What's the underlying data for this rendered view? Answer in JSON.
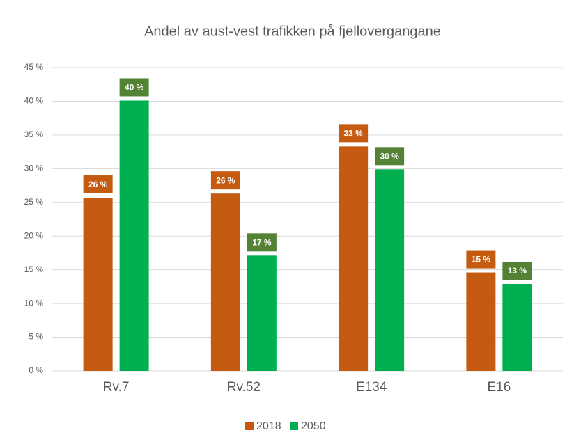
{
  "chart_data": {
    "type": "bar",
    "title": "Andel av aust-vest trafikken på fjellovergangane",
    "categories": [
      "Rv.7",
      "Rv.52",
      "E134",
      "E16"
    ],
    "series": [
      {
        "name": "2018",
        "color": "#c55a11",
        "label_color": "#c55a11",
        "values": [
          25.7,
          26.3,
          33.3,
          14.6
        ],
        "value_labels": [
          "26 %",
          "26 %",
          "33 %",
          "15 %"
        ]
      },
      {
        "name": "2050",
        "color": "#00b050",
        "label_color": "#548235",
        "values": [
          40.1,
          17.1,
          29.9,
          12.9
        ],
        "value_labels": [
          "40 %",
          "17 %",
          "30 %",
          "13 %"
        ]
      }
    ],
    "ylim": [
      0,
      45
    ],
    "yticks": [
      {
        "value": 0,
        "label": "0 %"
      },
      {
        "value": 5,
        "label": "5 %"
      },
      {
        "value": 10,
        "label": "10 %"
      },
      {
        "value": 15,
        "label": "15 %"
      },
      {
        "value": 20,
        "label": "20 %"
      },
      {
        "value": 25,
        "label": "25 %"
      },
      {
        "value": 30,
        "label": "30 %"
      },
      {
        "value": 35,
        "label": "35 %"
      },
      {
        "value": 40,
        "label": "40 %"
      },
      {
        "value": 45,
        "label": "45 %"
      }
    ],
    "grid": true,
    "legend": "bottom"
  }
}
